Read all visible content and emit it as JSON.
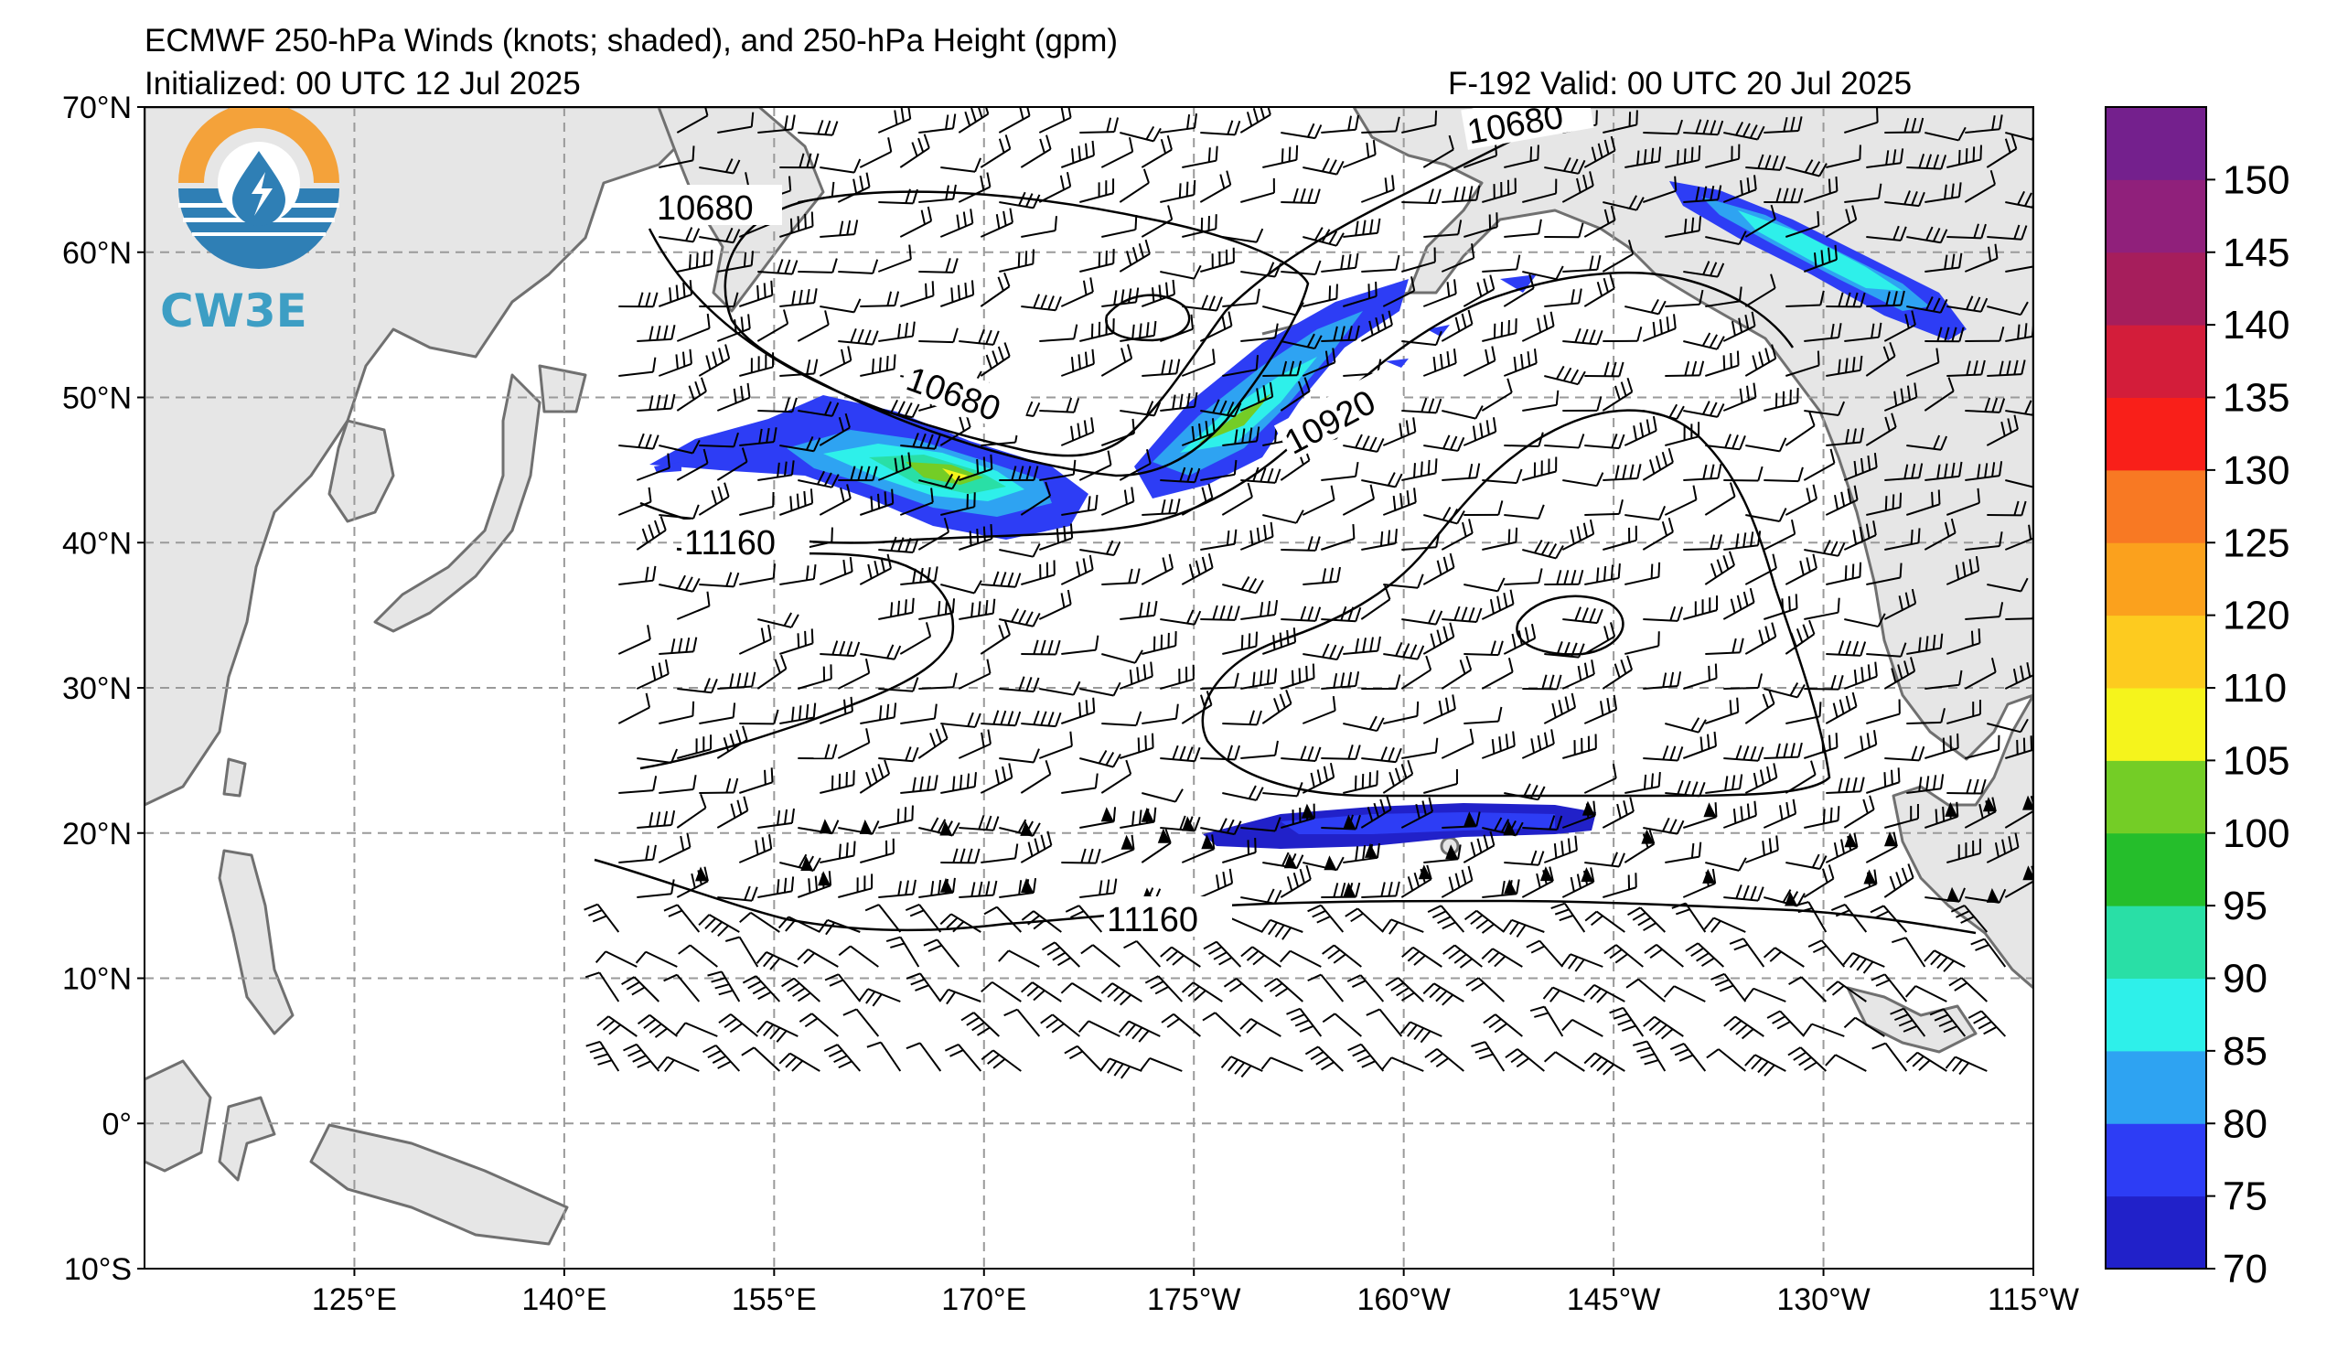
{
  "header": {
    "title_line1": "ECMWF 250-hPa Winds (knots; shaded), and 250-hPa Height (gpm)",
    "title_line2": "Initialized: 00 UTC 12 Jul 2025",
    "forecast_info": "F-192  Valid: 00 UTC 20 Jul 2025"
  },
  "logo": {
    "text": "CW3E",
    "colors": {
      "orange": "#f4a23a",
      "blue": "#2f7fb5",
      "light_blue": "#3d9ec4"
    }
  },
  "map": {
    "extent": {
      "lon_west": 110,
      "lon_east": 245,
      "lat_south": -10,
      "lat_north": 70
    },
    "lat_labels": [
      "70°N",
      "60°N",
      "50°N",
      "40°N",
      "30°N",
      "20°N",
      "10°N",
      "0°",
      "10°S"
    ],
    "lon_labels": [
      "125°E",
      "140°E",
      "155°E",
      "170°E",
      "175°W",
      "160°W",
      "145°W",
      "130°W",
      "115°W"
    ],
    "land_color": "#e6e6e6",
    "coast_color": "#707070",
    "grid_style": "dashed gray"
  },
  "contour_labels": [
    "10680",
    "10680",
    "10920",
    "11160",
    "11160",
    "10680"
  ],
  "colorbar": {
    "levels": [
      70,
      75,
      80,
      85,
      90,
      95,
      100,
      105,
      110,
      120,
      125,
      130,
      135,
      140,
      145,
      150,
      155
    ],
    "labels": [
      "70",
      "75",
      "80",
      "85",
      "90",
      "95",
      "100",
      "105",
      "110",
      "120",
      "125",
      "130",
      "135",
      "140",
      "145",
      "150"
    ],
    "colors": [
      "#2121c9",
      "#2d3df5",
      "#2ea3f2",
      "#2ef0ea",
      "#29dfa6",
      "#25be2b",
      "#74cd26",
      "#f5f41c",
      "#fdcb1f",
      "#fba11d",
      "#f87923",
      "#f91f19",
      "#d31d3a",
      "#a61e5c",
      "#90207b",
      "#74208d"
    ]
  }
}
